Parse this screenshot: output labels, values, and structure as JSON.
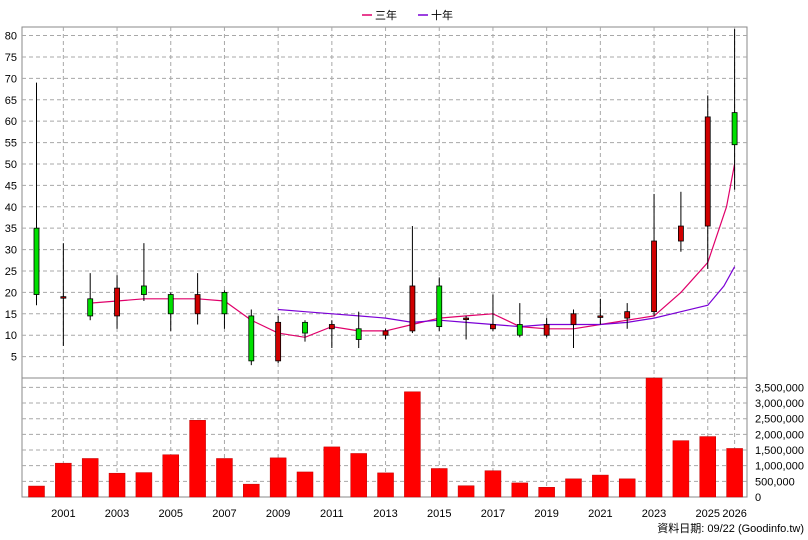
{
  "chart_data": {
    "type": "candlestick_with_volume",
    "legend": [
      {
        "name": "三年",
        "color": "#e0006a"
      },
      {
        "name": "十年",
        "color": "#7b00d6"
      }
    ],
    "price_axis": {
      "min": 0,
      "max": 82,
      "ticks": [
        5,
        10,
        15,
        20,
        25,
        30,
        35,
        40,
        45,
        50,
        55,
        60,
        65,
        70,
        75,
        80
      ]
    },
    "volume_axis": {
      "min": 0,
      "max": 3800000,
      "ticks": [
        0,
        500000,
        1000000,
        1500000,
        2000000,
        2500000,
        3000000,
        3500000
      ],
      "tick_labels": [
        "0",
        "500,000",
        "1,000,000",
        "1,500,000",
        "2,000,000",
        "2,500,000",
        "3,000,000",
        "3,500,000"
      ]
    },
    "x_labels": [
      "2001",
      "2003",
      "2005",
      "2007",
      "2009",
      "2011",
      "2013",
      "2015",
      "2017",
      "2019",
      "2021",
      "2023",
      "2025",
      "2026"
    ],
    "years": [
      2000,
      2001,
      2002,
      2003,
      2004,
      2005,
      2006,
      2007,
      2008,
      2009,
      2010,
      2011,
      2012,
      2013,
      2014,
      2015,
      2016,
      2017,
      2018,
      2019,
      2020,
      2021,
      2022,
      2023,
      2024,
      2025,
      2026
    ],
    "candles": [
      {
        "open": 19.5,
        "close": 35.0,
        "high": 69.0,
        "low": 17.0
      },
      {
        "open": 19.0,
        "close": 19.0,
        "high": 31.5,
        "low": 7.5
      },
      {
        "open": 14.5,
        "close": 18.5,
        "high": 24.5,
        "low": 13.5
      },
      {
        "open": 21.0,
        "close": 14.5,
        "high": 24.0,
        "low": 11.5
      },
      {
        "open": 19.5,
        "close": 21.5,
        "high": 31.5,
        "low": 18.0
      },
      {
        "open": 15.0,
        "close": 19.5,
        "high": 20.0,
        "low": 11.0
      },
      {
        "open": 19.5,
        "close": 15.0,
        "high": 24.5,
        "low": 12.5
      },
      {
        "open": 15.0,
        "close": 20.0,
        "high": 20.5,
        "low": 11.5
      },
      {
        "open": 4.0,
        "close": 14.5,
        "high": 16.0,
        "low": 3.0
      },
      {
        "open": 13.0,
        "close": 4.0,
        "high": 14.5,
        "low": 3.5
      },
      {
        "open": 10.5,
        "close": 13.0,
        "high": 13.5,
        "low": 8.5
      },
      {
        "open": 12.5,
        "close": 11.5,
        "high": 13.5,
        "low": 7.0
      },
      {
        "open": 9.0,
        "close": 11.5,
        "high": 15.5,
        "low": 7.0
      },
      {
        "open": 11.0,
        "close": 10.0,
        "high": 11.5,
        "low": 9.0
      },
      {
        "open": 21.5,
        "close": 11.0,
        "high": 35.5,
        "low": 10.5
      },
      {
        "open": 12.0,
        "close": 21.5,
        "high": 23.5,
        "low": 11.0
      },
      {
        "open": 14.0,
        "close": 14.0,
        "high": 14.5,
        "low": 9.0
      },
      {
        "open": 12.5,
        "close": 11.5,
        "high": 19.5,
        "low": 11.0
      },
      {
        "open": 10.0,
        "close": 12.5,
        "high": 17.5,
        "low": 9.5
      },
      {
        "open": 12.5,
        "close": 10.0,
        "high": 14.0,
        "low": 9.5
      },
      {
        "open": 15.0,
        "close": 12.5,
        "high": 16.0,
        "low": 7.0
      },
      {
        "open": 14.5,
        "close": 14.5,
        "high": 18.5,
        "low": 12.5
      },
      {
        "open": 15.5,
        "close": 14.0,
        "high": 17.5,
        "low": 11.5
      },
      {
        "open": 32.0,
        "close": 15.5,
        "high": 43.0,
        "low": 14.5
      },
      {
        "open": 35.5,
        "close": 32.0,
        "high": 43.5,
        "low": 29.5
      },
      {
        "open": 61.0,
        "close": 35.5,
        "high": 66.0,
        "low": 25.5
      },
      {
        "open": 54.5,
        "close": 62.0,
        "high": 81.5,
        "low": 44.0
      }
    ],
    "ma_3y": [
      17.5,
      18.0,
      18.5,
      18.5,
      18.5,
      18.0,
      13.5,
      10.5,
      9.5,
      12.0,
      11.0,
      11.0,
      12.5,
      14.0,
      14.5,
      15.0,
      12.0,
      11.5,
      11.5,
      12.5,
      13.5,
      14.5,
      20.0,
      27.0,
      40.0,
      50.0
    ],
    "ma_3y_years": [
      2002,
      2003,
      2004,
      2005,
      2006,
      2007,
      2008,
      2009,
      2010,
      2011,
      2012,
      2013,
      2014,
      2015,
      2016,
      2017,
      2018,
      2019,
      2020,
      2021,
      2022,
      2023,
      2024,
      2025,
      2025.7,
      2026
    ],
    "ma_10y": [
      16.0,
      15.5,
      15.0,
      14.5,
      14.0,
      13.0,
      13.5,
      13.0,
      12.5,
      12.0,
      12.5,
      12.5,
      12.5,
      13.0,
      14.0,
      15.5,
      17.0,
      21.5,
      26.0
    ],
    "ma_10y_years": [
      2009,
      2010,
      2011,
      2012,
      2013,
      2014,
      2015,
      2016,
      2017,
      2018,
      2019,
      2020,
      2021,
      2022,
      2023,
      2024,
      2025,
      2025.6,
      2026
    ],
    "volume": [
      350000,
      1080000,
      1230000,
      760000,
      780000,
      1350000,
      2450000,
      1230000,
      410000,
      1250000,
      800000,
      1600000,
      1390000,
      770000,
      3360000,
      910000,
      360000,
      840000,
      450000,
      310000,
      580000,
      700000,
      580000,
      3800000,
      1800000,
      1930000,
      1550000
    ],
    "footer": "資料日期: 09/22 (Goodinfo.tw)"
  }
}
